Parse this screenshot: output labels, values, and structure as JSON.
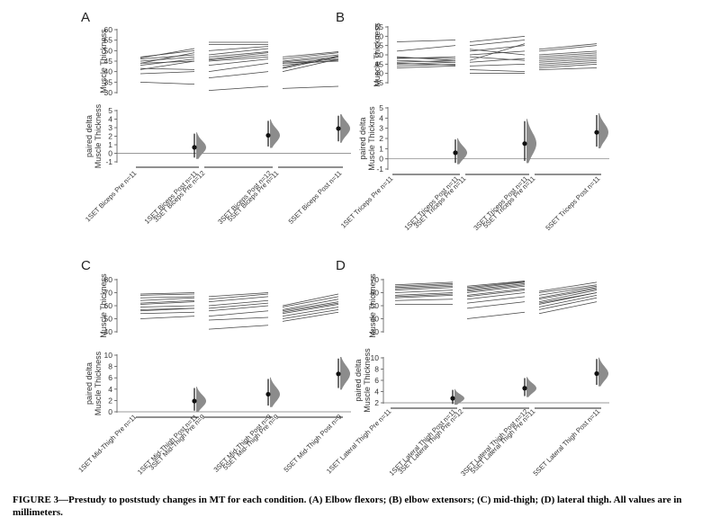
{
  "caption": {
    "figure_label": "FIGURE 3—",
    "text": "Prestudy to poststudy changes in MT for each condition. (A) Elbow flexors; (B) elbow extensors; (C) mid-thigh; (D) lateral thigh. All values are in millimeters."
  },
  "colors": {
    "lines": "#444444",
    "halfviolin": "#8c8c8c",
    "point": "#111111",
    "axis": "#555555"
  },
  "chart_data": [
    {
      "type": "line",
      "panel_label": "A",
      "top_ylabel": "Muscle Thickness",
      "top_ylim": [
        30,
        60
      ],
      "top_yticks": [
        30,
        35,
        40,
        45,
        50,
        55,
        60
      ],
      "bottom_ylabel": [
        "paired delta",
        "Muscle Thickness"
      ],
      "bottom_ylim": [
        -1,
        5
      ],
      "bottom_yticks": [
        -1,
        0,
        1,
        2,
        3,
        4,
        5
      ],
      "x_labels": [
        "1SET Biceps Pre n=11",
        "1SET Biceps Post n=11",
        "3SET Biceps Pre n=12",
        "3SET Biceps Post n=12",
        "5SET Biceps Pre n=11",
        "5SET Biceps Post n=11"
      ],
      "groups": [
        {
          "name": "1SET",
          "pre": [
            35,
            39,
            41,
            43,
            44,
            45,
            46,
            46.5,
            47,
            41.5,
            44
          ],
          "post": [
            34,
            40,
            45,
            46,
            49,
            47,
            48,
            51,
            50,
            41,
            45
          ]
        },
        {
          "name": "3SET",
          "pre": [
            31,
            37,
            40,
            43,
            45,
            46,
            47,
            48,
            50,
            53,
            54,
            45.5
          ],
          "post": [
            33,
            40,
            44,
            46,
            47,
            49,
            49.5,
            51,
            52,
            53,
            54,
            48
          ]
        },
        {
          "name": "5SET",
          "pre": [
            32,
            40,
            41.5,
            42,
            43,
            44,
            44.5,
            45,
            46,
            47,
            44
          ],
          "post": [
            33,
            46,
            47,
            47.5,
            45.5,
            46,
            47,
            48,
            49,
            49.5,
            45
          ]
        }
      ],
      "deltas": [
        {
          "group": "1SET",
          "mean": 0.7,
          "ci": [
            -0.5,
            2.3
          ]
        },
        {
          "group": "3SET",
          "mean": 2.1,
          "ci": [
            0.8,
            3.8
          ]
        },
        {
          "group": "5SET",
          "mean": 2.9,
          "ci": [
            1.4,
            4.4
          ]
        }
      ]
    },
    {
      "type": "line",
      "panel_label": "B",
      "top_ylabel": "Muscle Thickness",
      "top_ylim": [
        35,
        65
      ],
      "top_yticks": [
        35,
        40,
        45,
        50,
        55,
        60,
        65
      ],
      "bottom_ylabel": [
        "paired delta",
        "Muscle Thickness"
      ],
      "bottom_ylim": [
        -1,
        5
      ],
      "bottom_yticks": [
        -1,
        0,
        1,
        2,
        3,
        4,
        5
      ],
      "x_labels": [
        "1SET Triceps Pre n=11",
        "1SET Triceps Post n=11",
        "3SET Triceps Pre n=11",
        "3SET Triceps Post n=11",
        "5SET Triceps Pre n=11",
        "5SET Triceps Post n=11"
      ],
      "groups": [
        {
          "name": "1SET",
          "pre": [
            43,
            44,
            45,
            46,
            47,
            48,
            48.5,
            49,
            52,
            57,
            45.5
          ],
          "post": [
            44,
            45,
            46,
            47,
            46,
            49,
            48,
            47,
            55,
            58,
            44.5
          ]
        },
        {
          "name": "3SET",
          "pre": [
            40,
            42,
            44,
            46,
            49,
            50,
            52,
            53,
            55,
            57,
            47
          ],
          "post": [
            40,
            41,
            45,
            48,
            47,
            52,
            55,
            50,
            58,
            60,
            56
          ]
        },
        {
          "name": "5SET",
          "pre": [
            42,
            43,
            45,
            46,
            47,
            48,
            49,
            50,
            52,
            53,
            44
          ],
          "post": [
            43,
            45,
            47,
            48,
            49,
            50,
            51,
            52,
            55,
            56,
            46
          ]
        }
      ],
      "deltas": [
        {
          "group": "1SET",
          "mean": 0.6,
          "ci": [
            -0.4,
            1.9
          ]
        },
        {
          "group": "3SET",
          "mean": 1.5,
          "ci": [
            -0.2,
            3.7
          ]
        },
        {
          "group": "5SET",
          "mean": 2.6,
          "ci": [
            1.2,
            4.3
          ]
        }
      ]
    },
    {
      "type": "line",
      "panel_label": "C",
      "top_ylabel": "Muscle Thickness",
      "top_ylim": [
        40,
        80
      ],
      "top_yticks": [
        40,
        50,
        60,
        70,
        80
      ],
      "bottom_ylabel": [
        "paired delta",
        "Muscle Thickness"
      ],
      "bottom_ylim": [
        0,
        10
      ],
      "bottom_yticks": [
        0,
        2,
        4,
        6,
        8,
        10
      ],
      "x_labels": [
        "1SET Mid-Thigh Pre n=11",
        "1SET Mid-Thigh Post n=11",
        "3SET Mid-Thigh Pre n=9",
        "3SET Mid-Thigh Post n=9",
        "5SET Mid-Thigh Pre n=9",
        "5SET Mid-Thigh Post n=9"
      ],
      "groups": [
        {
          "name": "1SET",
          "pre": [
            50,
            54,
            57,
            59,
            61,
            62,
            64,
            66,
            68,
            69,
            56
          ],
          "post": [
            52,
            55,
            58,
            60,
            63,
            64,
            66,
            67,
            69,
            70,
            58
          ]
        },
        {
          "name": "3SET",
          "pre": [
            42,
            49,
            52,
            56,
            60,
            63,
            65,
            67,
            58
          ],
          "post": [
            45,
            51,
            56,
            60,
            64,
            67,
            69,
            70,
            62
          ]
        },
        {
          "name": "5SET",
          "pre": [
            48,
            50,
            52,
            54,
            55,
            56,
            57,
            59,
            60
          ],
          "post": [
            55,
            57,
            59,
            61,
            62,
            63,
            65,
            67,
            69
          ]
        }
      ],
      "deltas": [
        {
          "group": "1SET",
          "mean": 1.9,
          "ci": [
            0.2,
            4.2
          ]
        },
        {
          "group": "3SET",
          "mean": 3.1,
          "ci": [
            1.1,
            5.8
          ]
        },
        {
          "group": "5SET",
          "mean": 6.7,
          "ci": [
            4.2,
            9.4
          ]
        }
      ]
    },
    {
      "type": "line",
      "panel_label": "D",
      "top_ylabel": "Muscle Thickness",
      "top_ylim": [
        30,
        70
      ],
      "top_yticks": [
        30,
        40,
        50,
        60,
        70
      ],
      "bottom_ylabel": [
        "paired delta",
        "Muscle Thickness"
      ],
      "bottom_ylim": [
        2,
        10
      ],
      "bottom_yticks": [
        2,
        4,
        6,
        8,
        10
      ],
      "x_labels": [
        "1SET Lateral Thigh Pre n=11",
        "1SET Lateral Thigh Post n=11",
        "3SET Lateral Thigh Pre n=12",
        "3SET Lateral Thigh Post n=12",
        "5SET Lateral Thigh Pre n=11",
        "5SET Lateral Thigh Post n=11"
      ],
      "groups": [
        {
          "name": "1SET",
          "pre": [
            51,
            54,
            56,
            58,
            60,
            62,
            63,
            64,
            65,
            66,
            57
          ],
          "post": [
            51,
            55,
            58,
            60,
            62,
            64,
            65,
            66,
            67,
            68,
            59
          ]
        },
        {
          "name": "3SET",
          "pre": [
            40,
            48,
            52,
            55,
            58,
            60,
            61,
            62,
            63,
            64,
            65,
            57
          ],
          "post": [
            45,
            53,
            57,
            60,
            63,
            65,
            66,
            67,
            68,
            68.5,
            69,
            62
          ]
        },
        {
          "name": "5SET",
          "pre": [
            44,
            47,
            49,
            51,
            53,
            55,
            56,
            58,
            60,
            61,
            52
          ],
          "post": [
            53,
            56,
            58,
            60,
            62,
            63,
            64,
            65,
            66,
            68,
            60
          ]
        }
      ],
      "deltas": [
        {
          "group": "1SET",
          "mean": 2.8,
          "ci": [
            1.8,
            4.3
          ]
        },
        {
          "group": "3SET",
          "mean": 4.6,
          "ci": [
            3.2,
            6.4
          ]
        },
        {
          "group": "5SET",
          "mean": 7.2,
          "ci": [
            5.2,
            9.8
          ]
        }
      ]
    }
  ]
}
